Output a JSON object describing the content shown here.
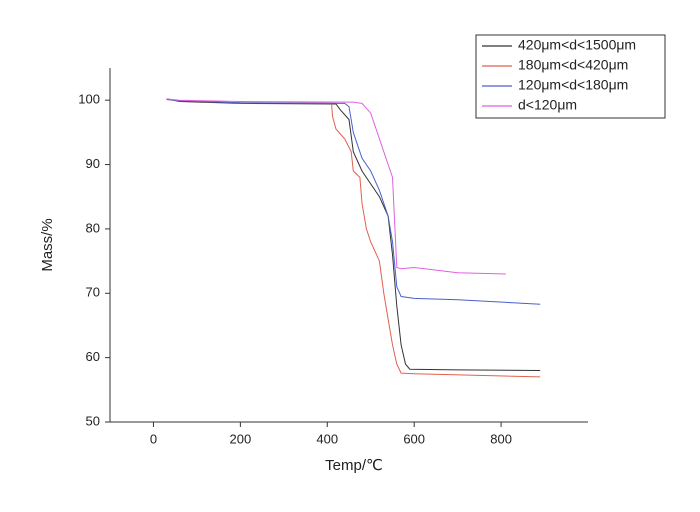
{
  "chart_data": {
    "type": "line",
    "x_label": "Temp/℃",
    "y_label": "Mass/%",
    "xlim": [
      -100,
      1000
    ],
    "ylim": [
      50,
      105
    ],
    "xticks": [
      0,
      200,
      400,
      600,
      800
    ],
    "yticks": [
      50,
      60,
      70,
      80,
      90,
      100
    ],
    "legend_position": "upper right",
    "series": [
      {
        "name": "420μm<d<1500μm",
        "color": "#333333",
        "x": [
          30,
          60,
          200,
          420,
          430,
          450,
          460,
          480,
          500,
          520,
          540,
          550,
          560,
          570,
          580,
          590,
          700,
          890
        ],
        "values": [
          100.2,
          99.8,
          99.5,
          99.4,
          98.5,
          97,
          92,
          89,
          87,
          85,
          82,
          76,
          68,
          62,
          59,
          58.2,
          58.1,
          58
        ]
      },
      {
        "name": "180μm<d<420μm",
        "color": "#e06050",
        "x": [
          30,
          60,
          200,
          410,
          412,
          420,
          440,
          455,
          460,
          475,
          480,
          490,
          500,
          520,
          530,
          540,
          550,
          560,
          570,
          600,
          890
        ],
        "values": [
          100.1,
          99.9,
          99.6,
          99.5,
          97.5,
          95.5,
          94,
          92,
          89,
          88,
          84,
          80,
          78,
          75,
          70,
          66,
          62,
          59,
          57.6,
          57.5,
          57
        ]
      },
      {
        "name": "120μm<d<180μm",
        "color": "#4a5fd0",
        "x": [
          30,
          60,
          200,
          440,
          450,
          460,
          480,
          500,
          520,
          540,
          550,
          560,
          570,
          600,
          700,
          890
        ],
        "values": [
          100.1,
          99.9,
          99.6,
          99.5,
          99,
          95,
          91,
          89,
          86,
          82,
          78,
          71,
          69.5,
          69.2,
          69,
          68.3
        ]
      },
      {
        "name": "d<120μm",
        "color": "#e060e0",
        "x": [
          30,
          60,
          200,
          460,
          480,
          500,
          520,
          540,
          550,
          560,
          570,
          600,
          700,
          811
        ],
        "values": [
          100.2,
          100,
          99.8,
          99.7,
          99.5,
          98,
          94,
          90,
          88,
          74,
          73.8,
          74,
          73.2,
          73
        ]
      }
    ]
  }
}
